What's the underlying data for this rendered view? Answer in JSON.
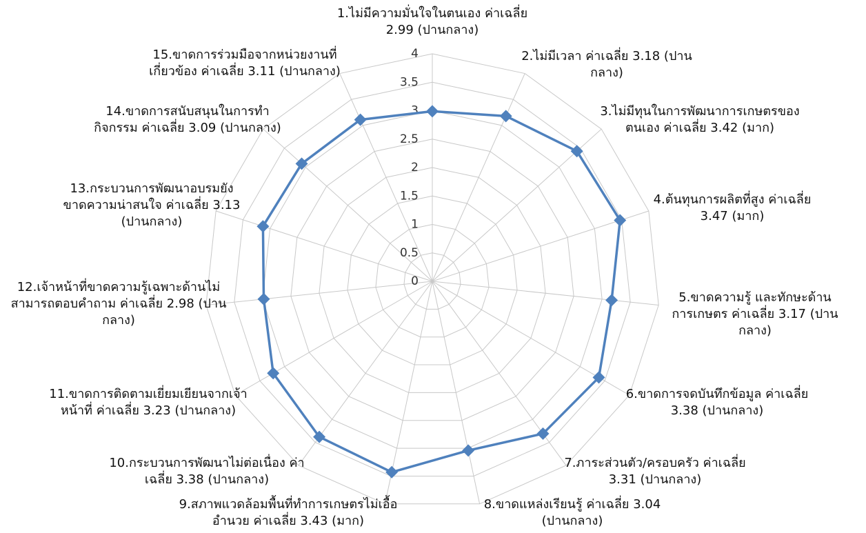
{
  "chart_data": {
    "type": "radar",
    "categories": [
      "1.ไม่มีความมั่นใจในตนเอง ค่าเฉลี่ย 2.99 (ปานกลาง)",
      "2.ไม่มีเวลา ค่าเฉลี่ย 3.18 (ปานกลาง)",
      "3.ไม่มีทุนในการพัฒนาการเกษตรของตนเอง ค่าเฉลี่ย 3.42 (มาก)",
      "4.ต้นทุนการผลิตที่สูง ค่าเฉลี่ย 3.47 (มาก)",
      "5.ขาดความรู้ และทักษะด้านการเกษตร ค่าเฉลี่ย 3.17 (ปานกลาง)",
      "6.ขาดการจดบันทึกข้อมูล ค่าเฉลี่ย 3.38 (ปานกลาง)",
      "7.ภาระส่วนตัว/ครอบครัว ค่าเฉลี่ย 3.31 (ปานกลาง)",
      "8.ขาดแหล่งเรียนรู้ ค่าเฉลี่ย 3.04 (ปานกลาง)",
      "9.สภาพแวดล้อมพื้นที่ทำการเกษตรไม่เอื้ออำนวย ค่าเฉลี่ย 3.43 (มาก)",
      "10.กระบวนการพัฒนาไม่ต่อเนื่อง ค่าเฉลี่ย 3.38 (ปานกลาง)",
      "11.ขาดการติดตามเยี่ยมเยียนจากเจ้าหน้าที่ ค่าเฉลี่ย 3.23 (ปานกลาง)",
      "12.เจ้าหน้าที่ขาดความรู้เฉพาะด้านไม่สามารถตอบคำถาม ค่าเฉลี่ย 2.98 (ปานกลาง)",
      "13.กระบวนการพัฒนาอบรมยังขาดความน่าสนใจ ค่าเฉลี่ย 3.13 (ปานกลาง)",
      "14.ขาดการสนับสนุนในการทำกิจกรรม ค่าเฉลี่ย 3.09 (ปานกลาง)",
      "15.ขาดการร่วมมือจากหน่วยงานที่เกี่ยวข้อง ค่าเฉลี่ย 3.11 (ปานกลาง)"
    ],
    "values": [
      2.99,
      3.18,
      3.42,
      3.47,
      3.17,
      3.38,
      3.31,
      3.04,
      3.43,
      3.38,
      3.23,
      2.98,
      3.13,
      3.09,
      3.11
    ],
    "color": "#4f81bd",
    "ylim": [
      0,
      4
    ],
    "yticks": [
      0,
      0.5,
      1,
      1.5,
      2,
      2.5,
      3,
      3.5,
      4
    ],
    "grid": true
  }
}
